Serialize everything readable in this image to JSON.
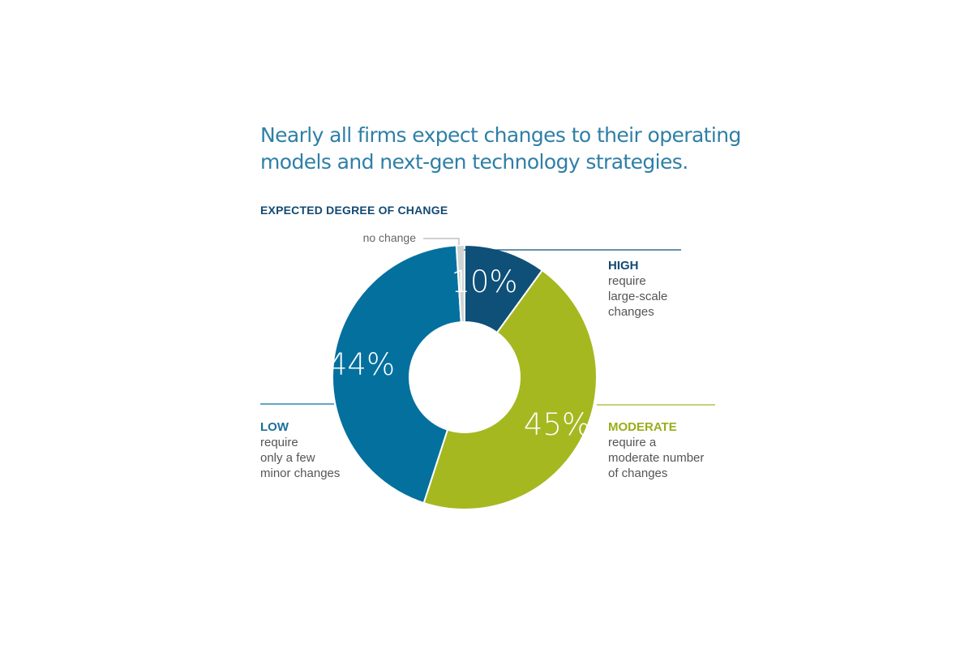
{
  "headline": {
    "line1": "Nearly all firms expect changes to their operating",
    "line2": "models and next-gen technology strategies."
  },
  "chart_data": {
    "type": "pie",
    "donut": true,
    "title": "EXPECTED DEGREE OF CHANGE",
    "series": [
      {
        "key": "high",
        "value": 10,
        "value_label": "10%",
        "heading": "HIGH",
        "description": [
          "require",
          "large-scale",
          "changes"
        ],
        "color": "#0e5078",
        "heading_color": "#134a73"
      },
      {
        "key": "moderate",
        "value": 45,
        "value_label": "45%",
        "heading": "MODERATE",
        "description": [
          "require a",
          "moderate number",
          "of changes"
        ],
        "color": "#a5b820",
        "heading_color": "#9aae1a"
      },
      {
        "key": "low",
        "value": 44,
        "value_label": "44%",
        "heading": "LOW",
        "description": [
          "require",
          "only a few",
          "minor changes"
        ],
        "color": "#04709e",
        "heading_color": "#1c6f9c"
      },
      {
        "key": "none",
        "value": 1,
        "value_label": "",
        "heading": "",
        "description": [
          "no change"
        ],
        "color": "#d0d3d4",
        "heading_color": "#777777"
      }
    ],
    "legend": "callouts"
  }
}
